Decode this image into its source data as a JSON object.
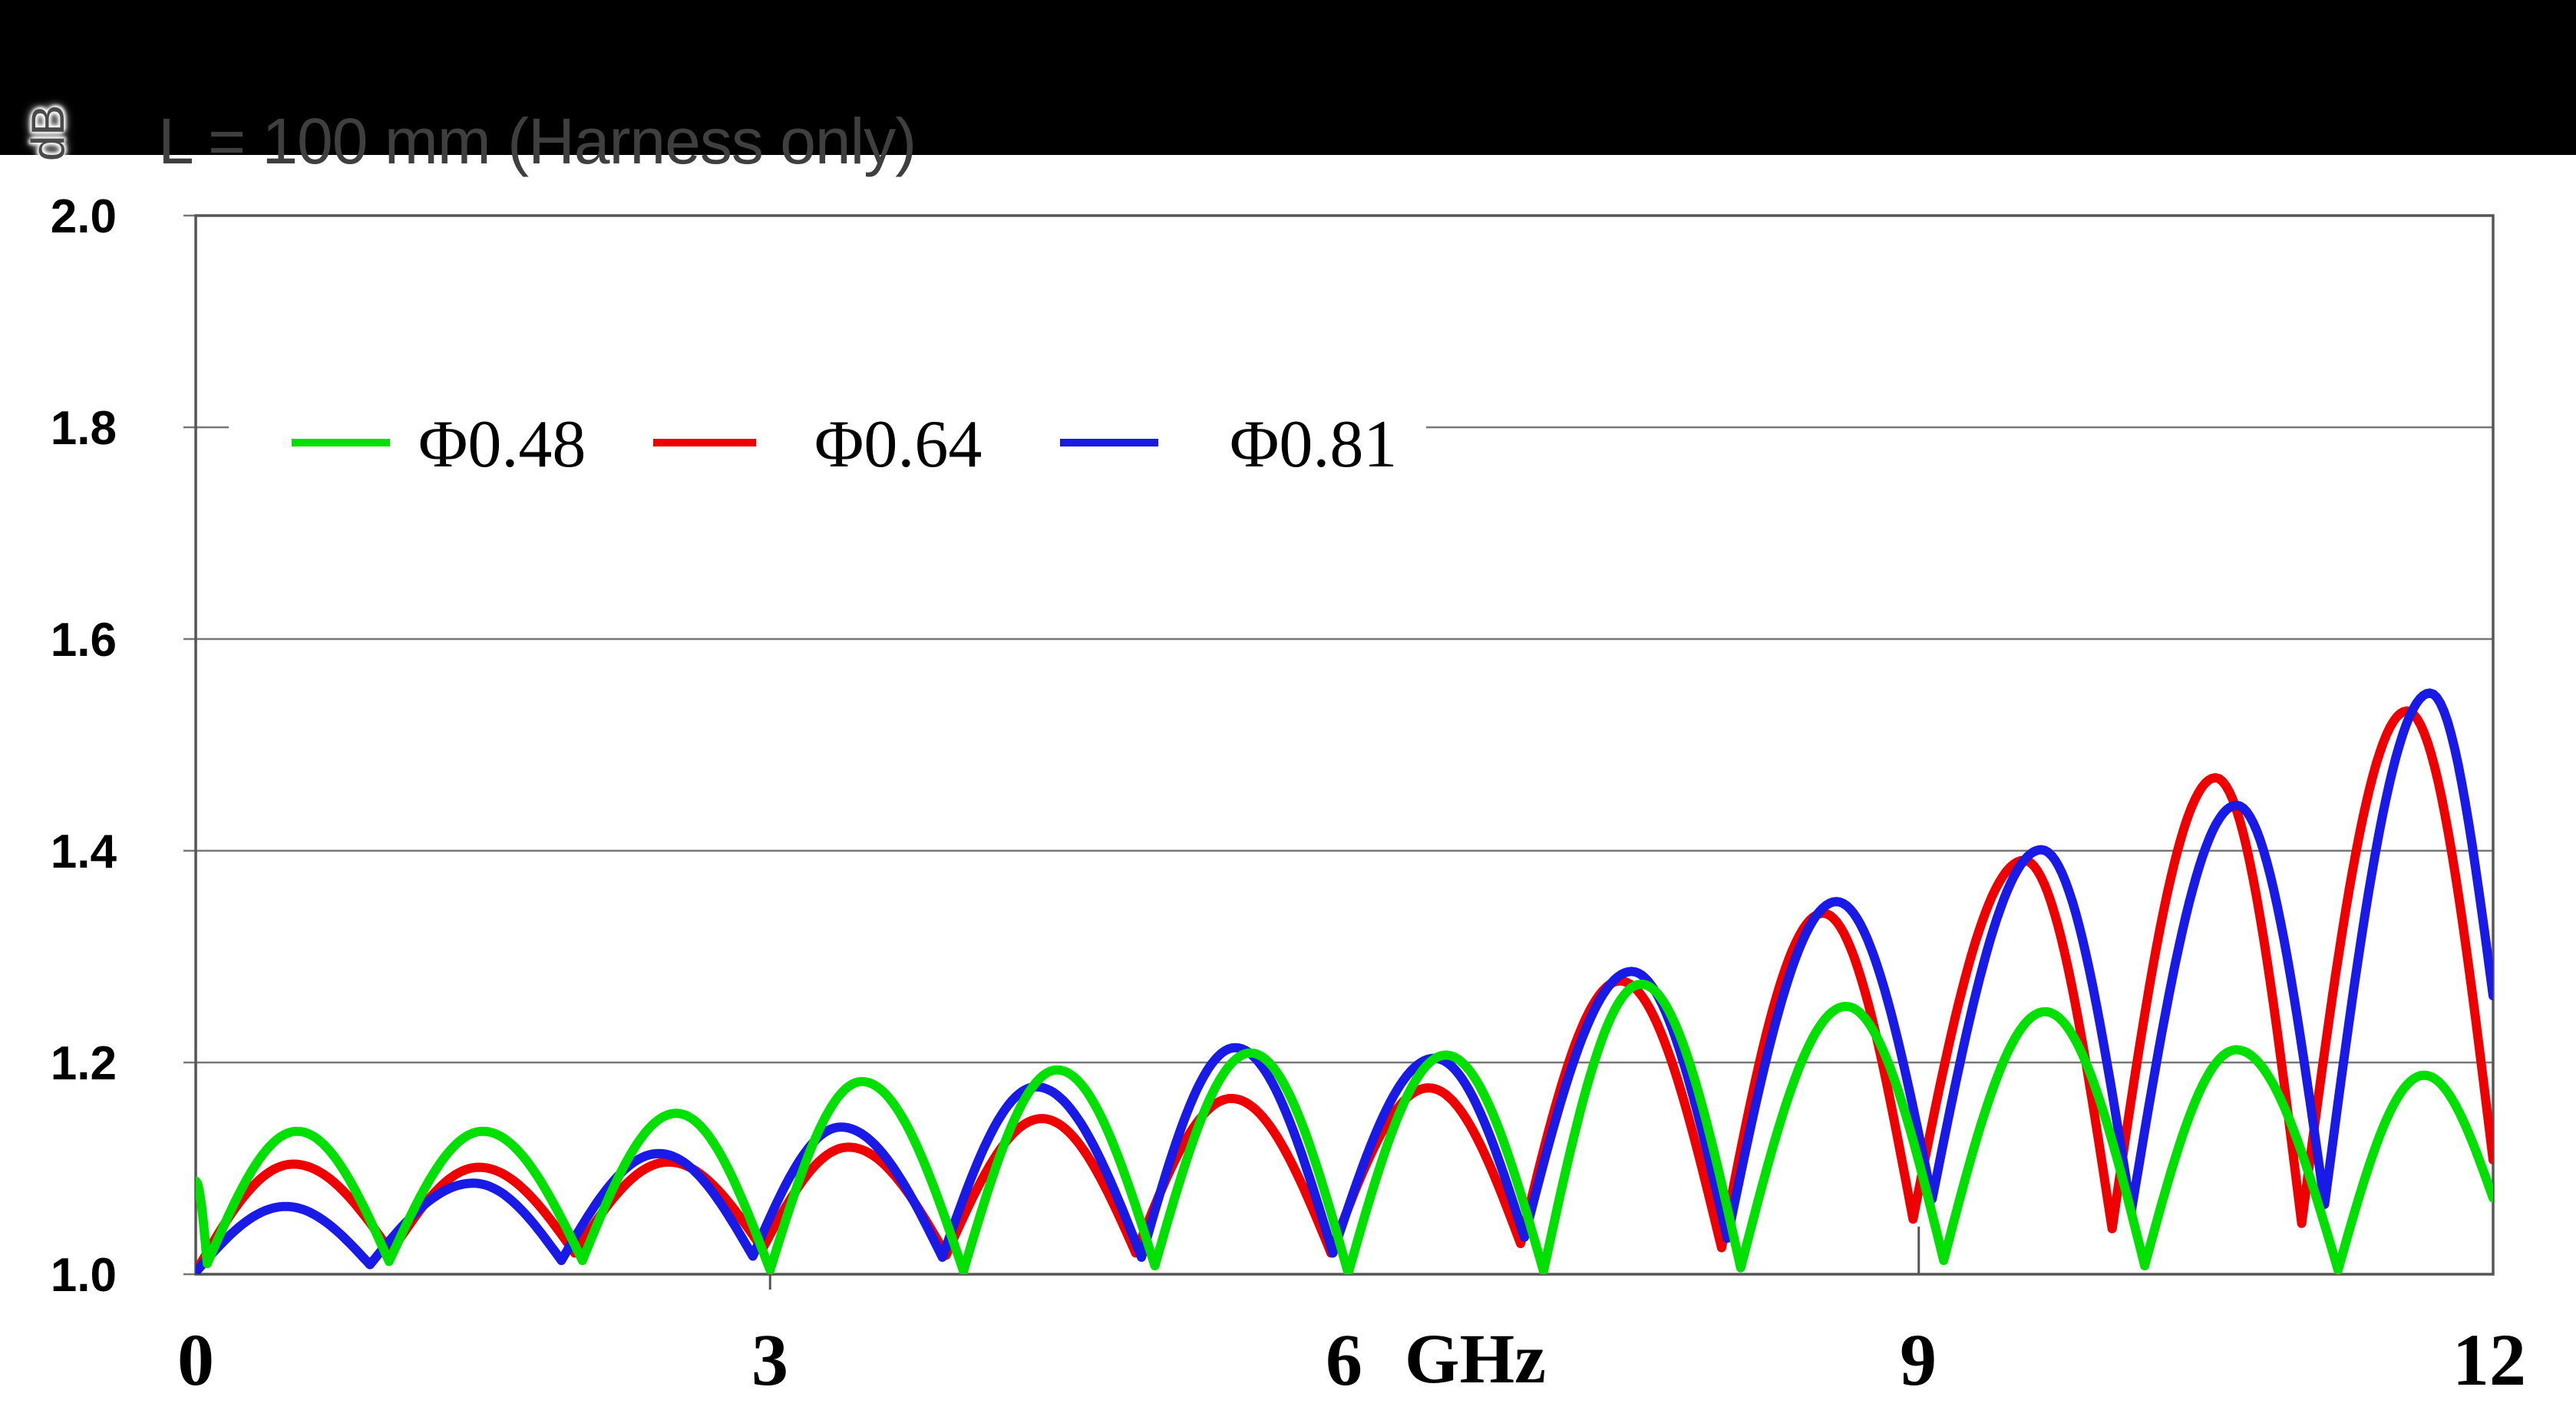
{
  "header": {
    "title": "L = 100 mm (Harness only)"
  },
  "chart_data": {
    "type": "line",
    "title": "L = 100 mm (Harness only)",
    "xlabel": "GHz",
    "ylabel": "dB",
    "xlim": [
      0,
      12
    ],
    "ylim": [
      1.0,
      2.0
    ],
    "grid": "horizontal",
    "legend_position": "inside-top-left-on-1.8-gridline",
    "x_tick_values": [
      0,
      3,
      6,
      9,
      12
    ],
    "x_tick_labels": [
      "0",
      "3",
      "6",
      "9",
      "12"
    ],
    "y_tick_values": [
      2.0,
      1.8,
      1.6,
      1.4,
      1.2,
      1.0
    ],
    "y_tick_labels": [
      "2.0",
      "1.8",
      "1.6",
      "1.4",
      "1.2",
      "1.0"
    ],
    "colors": {
      "grid": "#777777",
      "frame": "#555555",
      "band": "#000000",
      "title_text": "#3f3f3f"
    },
    "line_width": 12,
    "draw_order": [
      1,
      2,
      0
    ],
    "series": [
      {
        "name": "Φ0.48",
        "color": "#00e000",
        "knots_ghz_db": [
          [
            0.0,
            1.088
          ],
          [
            0.06,
            1.01
          ],
          [
            0.53,
            1.135
          ],
          [
            1.01,
            1.012
          ],
          [
            1.5,
            1.135
          ],
          [
            2.02,
            1.013
          ],
          [
            2.51,
            1.152
          ],
          [
            3.0,
            1.004
          ],
          [
            3.48,
            1.182
          ],
          [
            4.01,
            1.003
          ],
          [
            4.5,
            1.193
          ],
          [
            5.01,
            1.008
          ],
          [
            5.51,
            1.209
          ],
          [
            6.02,
            1.001
          ],
          [
            6.53,
            1.207
          ],
          [
            7.04,
            1.003
          ],
          [
            7.55,
            1.274
          ],
          [
            8.07,
            1.006
          ],
          [
            8.62,
            1.253
          ],
          [
            9.13,
            1.013
          ],
          [
            9.66,
            1.248
          ],
          [
            10.18,
            1.008
          ],
          [
            10.66,
            1.212
          ],
          [
            11.19,
            1.004
          ],
          [
            11.64,
            1.188
          ],
          [
            12.0,
            1.072
          ]
        ]
      },
      {
        "name": "Φ0.64",
        "color": "#ee0000",
        "knots_ghz_db": [
          [
            0.0,
            1.002
          ],
          [
            0.51,
            1.104
          ],
          [
            1.02,
            1.021
          ],
          [
            1.48,
            1.101
          ],
          [
            1.98,
            1.02
          ],
          [
            2.47,
            1.106
          ],
          [
            2.96,
            1.024
          ],
          [
            3.41,
            1.12
          ],
          [
            3.92,
            1.018
          ],
          [
            4.42,
            1.147
          ],
          [
            4.91,
            1.02
          ],
          [
            5.41,
            1.166
          ],
          [
            5.93,
            1.02
          ],
          [
            6.44,
            1.176
          ],
          [
            6.92,
            1.029
          ],
          [
            7.44,
            1.277
          ],
          [
            7.97,
            1.025
          ],
          [
            8.5,
            1.341
          ],
          [
            8.97,
            1.052
          ],
          [
            9.55,
            1.391
          ],
          [
            10.01,
            1.043
          ],
          [
            10.55,
            1.469
          ],
          [
            11.0,
            1.048
          ],
          [
            11.55,
            1.532
          ],
          [
            12.0,
            1.108
          ]
        ]
      },
      {
        "name": "Φ0.81",
        "color": "#1a1ae6",
        "knots_ghz_db": [
          [
            0.0,
            1.002
          ],
          [
            0.47,
            1.064
          ],
          [
            0.91,
            1.009
          ],
          [
            1.45,
            1.086
          ],
          [
            1.91,
            1.013
          ],
          [
            2.42,
            1.114
          ],
          [
            2.91,
            1.017
          ],
          [
            3.37,
            1.139
          ],
          [
            3.9,
            1.016
          ],
          [
            4.39,
            1.177
          ],
          [
            4.94,
            1.016
          ],
          [
            5.43,
            1.214
          ],
          [
            5.94,
            1.02
          ],
          [
            6.47,
            1.204
          ],
          [
            6.94,
            1.035
          ],
          [
            7.5,
            1.286
          ],
          [
            8.0,
            1.034
          ],
          [
            8.57,
            1.352
          ],
          [
            9.07,
            1.071
          ],
          [
            9.64,
            1.401
          ],
          [
            10.11,
            1.059
          ],
          [
            10.66,
            1.443
          ],
          [
            11.12,
            1.066
          ],
          [
            11.67,
            1.549
          ],
          [
            12.0,
            1.263
          ]
        ]
      }
    ]
  }
}
